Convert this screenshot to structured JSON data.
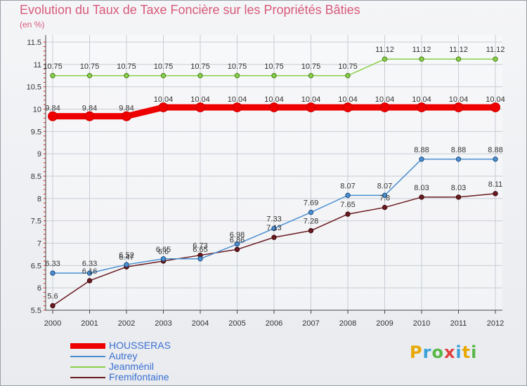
{
  "title": "Evolution du Taux de Taxe Foncière sur les Propriétés Bâties",
  "subtitle": "(en %)",
  "logo": {
    "letters": [
      "P",
      "r",
      "o",
      "x",
      "i",
      "t",
      "i"
    ],
    "colors": [
      "#e8a800",
      "#3aa0d8",
      "#58b848",
      "#e04040",
      "#3aa0d8",
      "#e8a800",
      "#58b848"
    ]
  },
  "chart_data": {
    "type": "line",
    "x": [
      "2000",
      "2001",
      "2002",
      "2003",
      "2004",
      "2005",
      "2006",
      "2007",
      "2008",
      "2009",
      "2010",
      "2011",
      "2012"
    ],
    "ylim": [
      5.5,
      11.5
    ],
    "yticks": [
      "5.5",
      "6",
      "6.5",
      "7",
      "7.5",
      "8",
      "8.5",
      "9",
      "9.5",
      "10",
      "10.5",
      "11",
      "11.5"
    ],
    "grid": true,
    "legend_position": "bottom-left",
    "series": [
      {
        "name": "HOUSSERAS",
        "color": "#ee0000",
        "values": [
          9.84,
          9.84,
          9.84,
          10.04,
          10.04,
          10.04,
          10.04,
          10.04,
          10.04,
          10.04,
          10.04,
          10.04,
          10.04
        ],
        "labels": [
          "9.84",
          "9.84",
          "9.84",
          "10.04",
          "10.04",
          "10.04",
          "10.04",
          "10.04",
          "10.04",
          "10.04",
          "10.04",
          "10.04",
          "10.04"
        ]
      },
      {
        "name": "Autrey",
        "color": "#4a8ed0",
        "values": [
          6.33,
          6.33,
          6.52,
          6.65,
          6.65,
          6.98,
          7.33,
          7.69,
          8.07,
          8.07,
          8.88,
          8.88,
          8.88
        ],
        "labels": [
          "6.33",
          "6.33",
          "6.52",
          "6.65",
          "6.65",
          "6.98",
          "7.33",
          "7.69",
          "8.07",
          "8.07",
          "8.88",
          "8.88",
          "8.88"
        ]
      },
      {
        "name": "Jeanménil",
        "color": "#88d048",
        "values": [
          10.75,
          10.75,
          10.75,
          10.75,
          10.75,
          10.75,
          10.75,
          10.75,
          10.75,
          11.12,
          11.12,
          11.12,
          11.12
        ],
        "labels": [
          "10.75",
          "10.75",
          "10.75",
          "10.75",
          "10.75",
          "10.75",
          "10.75",
          "10.75",
          "10.75",
          "11.12",
          "11.12",
          "11.12",
          "11.12"
        ]
      },
      {
        "name": "Fremifontaine",
        "color": "#6a1a20",
        "values": [
          5.6,
          6.16,
          6.47,
          6.6,
          6.73,
          6.86,
          7.13,
          7.28,
          7.65,
          7.8,
          8.03,
          8.03,
          8.11
        ],
        "labels": [
          "5.6",
          "6.16",
          "6.47",
          "6.6",
          "6.73",
          "6.86",
          "7.13",
          "7.28",
          "7.65",
          "7.8",
          "8.03",
          "8.03",
          "8.11"
        ]
      }
    ]
  }
}
